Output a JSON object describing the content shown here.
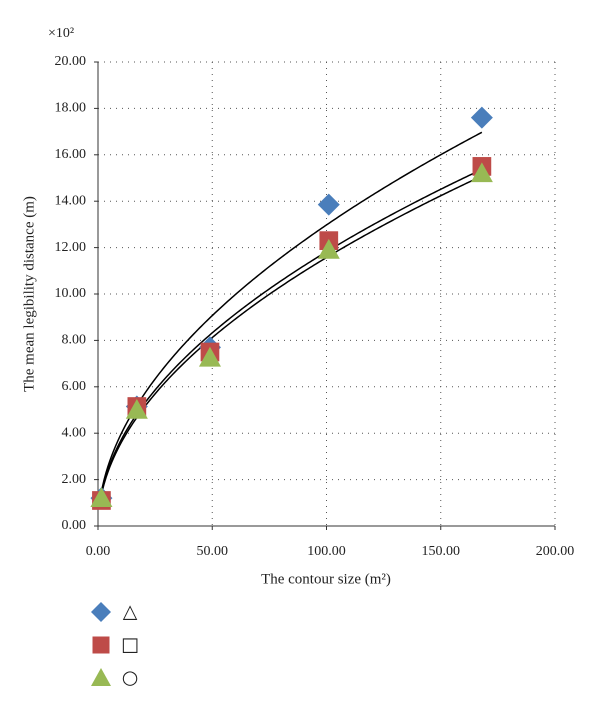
{
  "chart_data": {
    "type": "scatter",
    "multiplier": "×10²",
    "x_label": "The contour size (m²)",
    "y_label": "The mean legibility distance (m)",
    "xlim": [
      0,
      200
    ],
    "xticks": [
      {
        "value": 0,
        "label": "0.00"
      },
      {
        "value": 50,
        "label": "50.00"
      },
      {
        "value": 100,
        "label": "100.00"
      },
      {
        "value": 150,
        "label": "150.00"
      },
      {
        "value": 200,
        "label": "200.00"
      }
    ],
    "ylim": [
      0,
      20
    ],
    "yticks": [
      {
        "value": 0,
        "label": "0.00"
      },
      {
        "value": 2,
        "label": "2.00"
      },
      {
        "value": 4,
        "label": "4.00"
      },
      {
        "value": 6,
        "label": "6.00"
      },
      {
        "value": 8,
        "label": "8.00"
      },
      {
        "value": 10,
        "label": "10.00"
      },
      {
        "value": 12,
        "label": "12.00"
      },
      {
        "value": 14,
        "label": "14.00"
      },
      {
        "value": 16,
        "label": "16.00"
      },
      {
        "value": 18,
        "label": "18.00"
      },
      {
        "value": 20,
        "label": "20.00"
      }
    ],
    "grid": true,
    "series": [
      {
        "name": "△",
        "marker": "diamond",
        "color": "#4a7ebb",
        "x": [
          1.5,
          17,
          49,
          101,
          168
        ],
        "values": [
          1.2,
          5.15,
          7.7,
          13.85,
          17.6
        ],
        "fit": {
          "a": 1.2,
          "b": 0.517,
          "x_range": [
            1,
            168
          ]
        }
      },
      {
        "name": "□",
        "marker": "square",
        "color": "#be4b48",
        "x": [
          1.5,
          17,
          49,
          101,
          168
        ],
        "values": [
          1.1,
          5.15,
          7.5,
          12.3,
          15.5
        ],
        "fit": {
          "a": 1.15,
          "b": 0.506,
          "x_range": [
            1,
            168
          ]
        }
      },
      {
        "name": "○",
        "marker": "triangle",
        "color": "#98b954",
        "x": [
          1.5,
          17,
          49,
          101,
          168
        ],
        "values": [
          1.2,
          5.0,
          7.25,
          11.9,
          15.2
        ],
        "fit": {
          "a": 1.1,
          "b": 0.511,
          "x_range": [
            1,
            168
          ]
        }
      }
    ]
  }
}
